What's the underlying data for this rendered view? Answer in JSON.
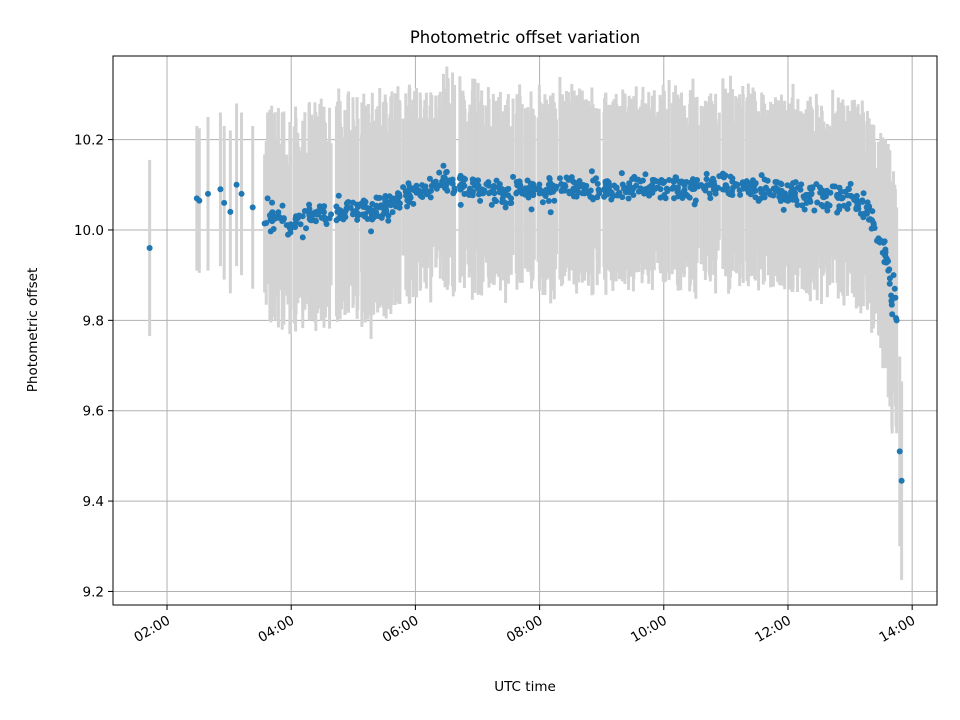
{
  "chart_data": {
    "type": "scatter",
    "title": "Photometric offset variation",
    "xlabel": "UTC time",
    "ylabel": "Photometric offset",
    "x_unit": "UTC hour",
    "xlim": [
      1.13,
      14.4
    ],
    "ylim": [
      9.17,
      10.385
    ],
    "x_ticks": [
      {
        "value": 2,
        "label": "02:00"
      },
      {
        "value": 4,
        "label": "04:00"
      },
      {
        "value": 6,
        "label": "06:00"
      },
      {
        "value": 8,
        "label": "08:00"
      },
      {
        "value": 10,
        "label": "10:00"
      },
      {
        "value": 12,
        "label": "12:00"
      },
      {
        "value": 14,
        "label": "14:00"
      }
    ],
    "y_ticks": [
      {
        "value": 9.2,
        "label": "9.2"
      },
      {
        "value": 9.4,
        "label": "9.4"
      },
      {
        "value": 9.6,
        "label": "9.6"
      },
      {
        "value": 9.8,
        "label": "9.8"
      },
      {
        "value": 10.0,
        "label": "10.0"
      },
      {
        "value": 10.2,
        "label": "10.2"
      }
    ],
    "grid": true,
    "legend": "none",
    "marker_color": "#1f77b4",
    "errorbar_color": "#d3d3d3",
    "trend": [
      {
        "x": 1.72,
        "y": 9.96,
        "err": 0.195
      },
      {
        "x": 2.5,
        "y": 10.07,
        "err": 0.16
      },
      {
        "x": 3.0,
        "y": 10.07,
        "err": 0.17
      },
      {
        "x": 3.5,
        "y": 10.04,
        "err": 0.19
      },
      {
        "x": 4.0,
        "y": 10.01,
        "err": 0.2
      },
      {
        "x": 4.5,
        "y": 10.04,
        "err": 0.2
      },
      {
        "x": 5.0,
        "y": 10.04,
        "err": 0.2
      },
      {
        "x": 5.5,
        "y": 10.05,
        "err": 0.2
      },
      {
        "x": 6.0,
        "y": 10.08,
        "err": 0.19
      },
      {
        "x": 6.5,
        "y": 10.11,
        "err": 0.19
      },
      {
        "x": 7.0,
        "y": 10.09,
        "err": 0.19
      },
      {
        "x": 7.5,
        "y": 10.08,
        "err": 0.19
      },
      {
        "x": 8.0,
        "y": 10.09,
        "err": 0.18
      },
      {
        "x": 8.5,
        "y": 10.095,
        "err": 0.18
      },
      {
        "x": 9.0,
        "y": 10.09,
        "err": 0.18
      },
      {
        "x": 9.5,
        "y": 10.095,
        "err": 0.18
      },
      {
        "x": 10.0,
        "y": 10.095,
        "err": 0.18
      },
      {
        "x": 10.5,
        "y": 10.09,
        "err": 0.18
      },
      {
        "x": 11.0,
        "y": 10.1,
        "err": 0.18
      },
      {
        "x": 11.5,
        "y": 10.09,
        "err": 0.18
      },
      {
        "x": 12.0,
        "y": 10.08,
        "err": 0.18
      },
      {
        "x": 12.5,
        "y": 10.075,
        "err": 0.18
      },
      {
        "x": 13.0,
        "y": 10.075,
        "err": 0.18
      },
      {
        "x": 13.3,
        "y": 10.04,
        "err": 0.18
      },
      {
        "x": 13.5,
        "y": 9.97,
        "err": 0.2
      },
      {
        "x": 13.6,
        "y": 9.94,
        "err": 0.22
      },
      {
        "x": 13.7,
        "y": 9.8,
        "err": 0.25
      }
    ],
    "points": [
      {
        "x": 1.72,
        "y": 9.96,
        "err": 0.195
      },
      {
        "x": 2.48,
        "y": 10.07,
        "err": 0.16
      },
      {
        "x": 2.52,
        "y": 10.065,
        "err": 0.16
      },
      {
        "x": 2.66,
        "y": 10.08,
        "err": 0.17
      },
      {
        "x": 2.86,
        "y": 10.09,
        "err": 0.17
      },
      {
        "x": 2.92,
        "y": 10.06,
        "err": 0.17
      },
      {
        "x": 3.02,
        "y": 10.04,
        "err": 0.18
      },
      {
        "x": 3.12,
        "y": 10.1,
        "err": 0.18
      },
      {
        "x": 3.2,
        "y": 10.08,
        "err": 0.18
      },
      {
        "x": 3.38,
        "y": 10.05,
        "err": 0.18
      },
      {
        "x": 3.62,
        "y": 10.07,
        "err": 0.19
      },
      {
        "x": 13.7,
        "y": 9.9,
        "err": 0.23
      },
      {
        "x": 13.72,
        "y": 9.87,
        "err": 0.23
      },
      {
        "x": 13.73,
        "y": 9.85,
        "err": 0.24
      },
      {
        "x": 13.74,
        "y": 9.805,
        "err": 0.24
      },
      {
        "x": 13.75,
        "y": 9.8,
        "err": 0.25
      },
      {
        "x": 13.8,
        "y": 9.51,
        "err": 0.21
      },
      {
        "x": 13.83,
        "y": 9.445,
        "err": 0.22
      }
    ],
    "dense_series": {
      "x_range": [
        3.55,
        13.68
      ],
      "count": 760,
      "scatter": 0.014
    }
  }
}
